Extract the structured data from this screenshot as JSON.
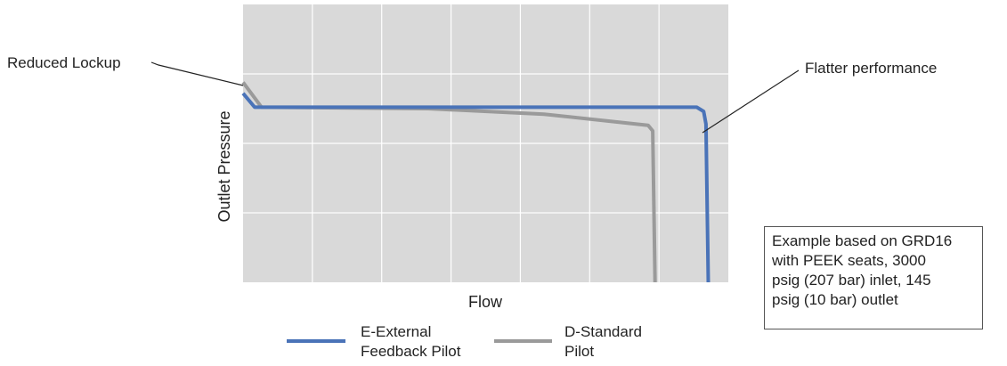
{
  "chart_data": {
    "type": "line",
    "title": "",
    "xlabel": "Flow",
    "ylabel": "Outlet Pressure",
    "xlim": [
      0,
      100
    ],
    "ylim": [
      0,
      100
    ],
    "grid": true,
    "x_ticks_labeled": false,
    "y_ticks_labeled": false,
    "legend_position": "bottom",
    "series": [
      {
        "name": "E-External Feedback Pilot",
        "name_lines": [
          "E-External",
          "Feedback Pilot"
        ],
        "color": "#4a73b8",
        "points": [
          [
            0,
            68
          ],
          [
            2.5,
            63
          ],
          [
            98,
            63
          ],
          [
            99.5,
            61.5
          ],
          [
            100,
            57
          ],
          [
            100.5,
            0
          ]
        ]
      },
      {
        "name": "D-Standard Pilot",
        "name_lines": [
          "D-Standard",
          "Pilot"
        ],
        "color": "#9a9a9a",
        "points": [
          [
            0,
            72
          ],
          [
            4,
            63
          ],
          [
            40,
            62.5
          ],
          [
            65,
            60.5
          ],
          [
            87.5,
            56.5
          ],
          [
            88.5,
            54.5
          ],
          [
            89,
            0
          ]
        ]
      }
    ],
    "annotations": [
      {
        "text": "Reduced Lockup",
        "color": "#222222"
      },
      {
        "text": "Flatter performance",
        "color": "#222222"
      }
    ],
    "note": {
      "lines": [
        "Example based on GRD16",
        "with PEEK seats, 3000",
        "psig (207 bar) inlet, 145",
        "psig (10 bar) outlet"
      ]
    },
    "colors": {
      "plot_background": "#d9d9d9",
      "grid": "#ffffff"
    }
  }
}
